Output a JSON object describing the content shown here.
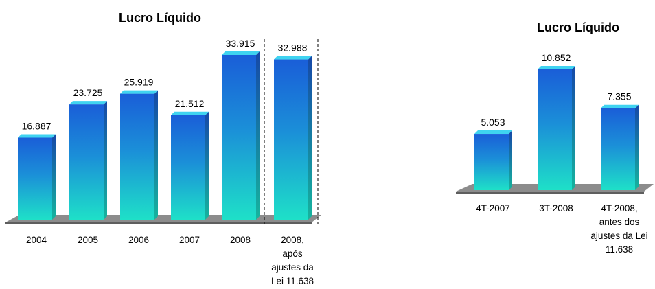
{
  "colors": {
    "bar_top": "#1a5ed8",
    "bar_bottom": "#1ee0c8",
    "bar_cap": "#3fd3f0",
    "floor": "#8c8c8c",
    "floor_edge": "#5e5e5e",
    "divider": "#000000"
  },
  "chart_data": [
    {
      "type": "bar",
      "title": "Lucro Líquido",
      "categories": [
        "2004",
        "2005",
        "2006",
        "2007",
        "2008",
        "2008, após ajustes da Lei 11.638"
      ],
      "category_lines": [
        [
          "2004"
        ],
        [
          "2005"
        ],
        [
          "2006"
        ],
        [
          "2007"
        ],
        [
          "2008"
        ],
        [
          "2008,",
          "após",
          "ajustes da",
          "Lei 11.638"
        ]
      ],
      "values": [
        16887,
        23725,
        25919,
        21512,
        33915,
        32988
      ],
      "value_labels": [
        "16.887",
        "23.725",
        "25.919",
        "21.512",
        "33.915",
        "32.988"
      ],
      "ylim": [
        0,
        33915
      ],
      "grid": false,
      "xlabel": "",
      "ylabel": ""
    },
    {
      "type": "bar",
      "title": "Lucro Líquido",
      "categories": [
        "4T-2007",
        "3T-2008",
        "4T-2008, antes dos ajustes da Lei 11.638"
      ],
      "category_lines": [
        [
          "4T-2007"
        ],
        [
          "3T-2008"
        ],
        [
          "4T-2008,",
          "antes dos",
          "ajustes da Lei",
          "11.638"
        ]
      ],
      "values": [
        5053,
        10852,
        7355
      ],
      "value_labels": [
        "5.053",
        "10.852",
        "7.355"
      ],
      "ylim": [
        0,
        10852
      ],
      "grid": false,
      "xlabel": "",
      "ylabel": ""
    }
  ]
}
